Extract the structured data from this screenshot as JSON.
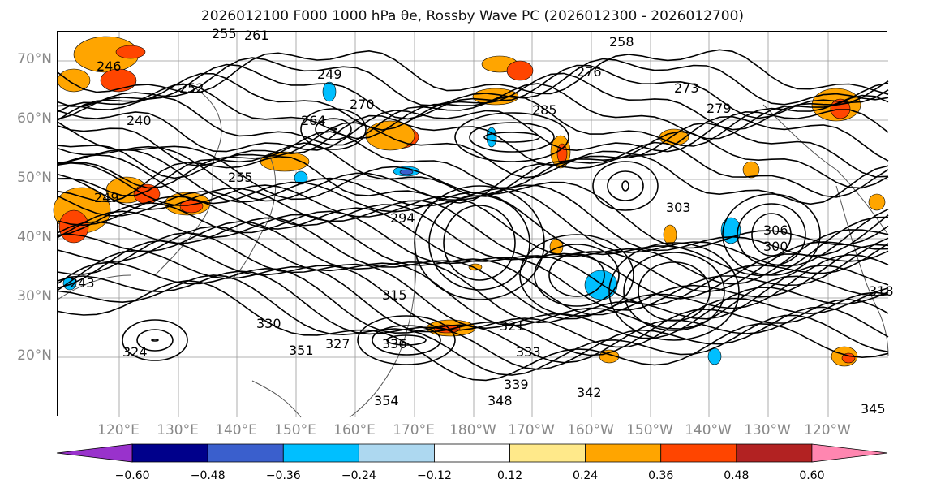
{
  "title": "2026012100 F000 1000 hPa θe, Rossby Wave PC (2026012300 - 2026012700)",
  "lat_labels": [
    "70°N",
    "60°N",
    "50°N",
    "40°N",
    "30°N",
    "20°N"
  ],
  "lon_labels": [
    "120°E",
    "130°E",
    "140°E",
    "150°E",
    "160°E",
    "170°E",
    "180°W",
    "170°W",
    "160°W",
    "150°W",
    "140°W",
    "130°W",
    "120°W"
  ],
  "contour_labels": [
    "246",
    "240",
    "252",
    "255",
    "261",
    "258",
    "249",
    "264",
    "270",
    "276",
    "273",
    "279",
    "285",
    "255",
    "249",
    "243",
    "330",
    "327",
    "324",
    "321",
    "315",
    "318",
    "303",
    "306",
    "300",
    "294",
    "333",
    "336",
    "339",
    "342",
    "348",
    "345",
    "351",
    "354"
  ],
  "colorbar": {
    "ticks": [
      "−0.60",
      "−0.48",
      "−0.36",
      "−0.24",
      "−0.12",
      "0.12",
      "0.24",
      "0.36",
      "0.48",
      "0.60"
    ],
    "colors": [
      "#9932cc",
      "#00008b",
      "#3a5fcd",
      "#00bfff",
      "#add8f0",
      "#ffffff",
      "#ffe98a",
      "#ffa500",
      "#ff4500",
      "#b22222",
      "#ff86b0"
    ]
  },
  "legend_colors": {
    "negative_fill": "#00bfff",
    "positive_fill": "#ffa500",
    "strong_positive": "#ff4500",
    "contour": "#000000",
    "coast": "#444444"
  }
}
